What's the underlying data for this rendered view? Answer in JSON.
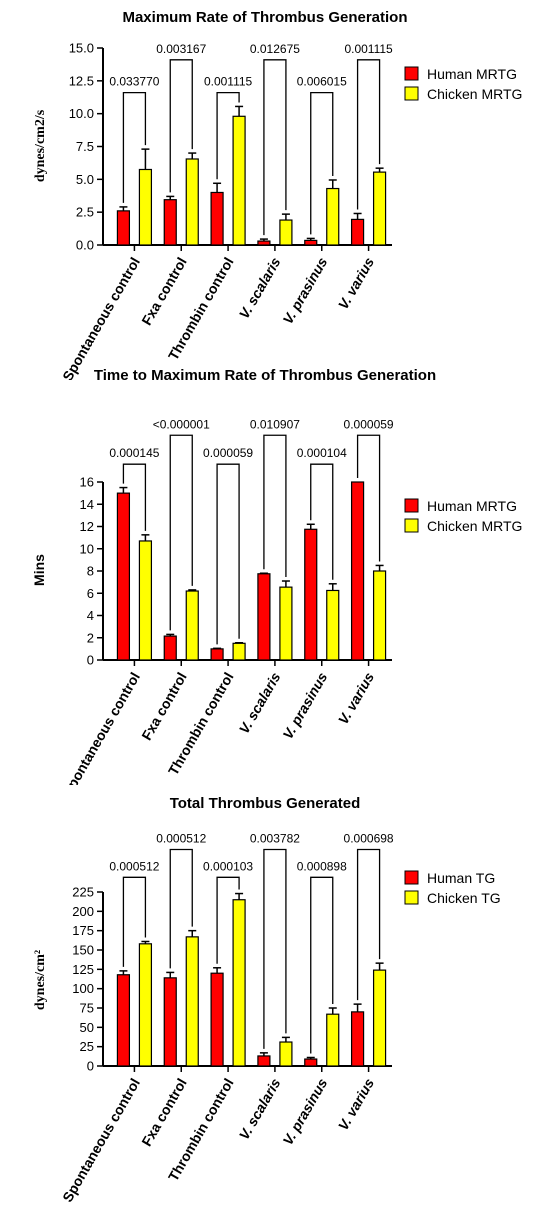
{
  "chart_data": [
    {
      "type": "bar",
      "title": "Maximum Rate of Thrombus Generation",
      "ylabel": "dynes/cm2/s",
      "ylabel_font": "serif",
      "ylim": [
        0,
        15
      ],
      "yticks": [
        "0.0",
        "2.5",
        "5.0",
        "7.5",
        "10.0",
        "12.5",
        "15.0"
      ],
      "ytick_values": [
        0,
        2.5,
        5,
        7.5,
        10,
        12.5,
        15
      ],
      "categories": [
        "Spontaneous control",
        "Fxa control",
        "Thrombin control",
        "V. scalaris",
        "V. prasinus",
        "V. varius"
      ],
      "italic_categories": [
        false,
        false,
        false,
        true,
        true,
        true
      ],
      "series": [
        {
          "name": "Human MRTG",
          "color": "#ff0000",
          "values": [
            2.6,
            3.45,
            4.0,
            0.3,
            0.35,
            1.95
          ],
          "errors": [
            0.3,
            0.25,
            0.7,
            0.15,
            0.15,
            0.45
          ]
        },
        {
          "name": "Chicken MRTG",
          "color": "#ffff00",
          "values": [
            5.75,
            6.55,
            9.8,
            1.9,
            4.3,
            5.55
          ],
          "errors": [
            1.55,
            0.45,
            0.75,
            0.45,
            0.65,
            0.3
          ]
        }
      ],
      "pvalues": [
        "0.033770",
        "0.003167",
        "0.001115",
        "0.012675",
        "0.006015",
        "0.001115"
      ],
      "bracket_tops": [
        11.6,
        14.1,
        11.6,
        14.1,
        11.6,
        14.1
      ],
      "legend_position": "right"
    },
    {
      "type": "bar",
      "title": "Time to Maximum Rate of Thrombus Generation",
      "ylabel": "Mins",
      "ylabel_font": "sans",
      "ylim": [
        0,
        16
      ],
      "yticks": [
        "0",
        "2",
        "4",
        "6",
        "8",
        "10",
        "12",
        "14",
        "16"
      ],
      "ytick_values": [
        0,
        2,
        4,
        6,
        8,
        10,
        12,
        14,
        16
      ],
      "categories": [
        "Spontaneous control",
        "Fxa control",
        "Thrombin control",
        "V. scalaris",
        "V. prasinus",
        "V. varius"
      ],
      "italic_categories": [
        false,
        false,
        false,
        true,
        true,
        true
      ],
      "series": [
        {
          "name": "Human MRTG",
          "color": "#ff0000",
          "values": [
            15.0,
            2.15,
            1.0,
            7.75,
            11.75,
            16.0
          ],
          "errors": [
            0.5,
            0.15,
            0.05,
            0.05,
            0.45,
            0.0
          ]
        },
        {
          "name": "Chicken MRTG",
          "color": "#ffff00",
          "values": [
            10.7,
            6.2,
            1.5,
            6.55,
            6.25,
            8.0
          ],
          "errors": [
            0.55,
            0.1,
            0.05,
            0.55,
            0.6,
            0.5
          ]
        }
      ],
      "pvalues": [
        "0.000145",
        "<0.000001",
        "0.000059",
        "0.010907",
        "0.000104",
        "0.000059"
      ],
      "bracket_tops": [
        17.6,
        20.2,
        17.6,
        20.2,
        17.6,
        20.2
      ],
      "legend_position": "right"
    },
    {
      "type": "bar",
      "title": "Total Thrombus Generated",
      "ylabel": "dynes/cm²",
      "ylabel_font": "serif",
      "ylim": [
        0,
        225
      ],
      "yticks": [
        "0",
        "25",
        "50",
        "75",
        "100",
        "125",
        "150",
        "175",
        "200",
        "225"
      ],
      "ytick_values": [
        0,
        25,
        50,
        75,
        100,
        125,
        150,
        175,
        200,
        225
      ],
      "categories": [
        "Spontaneous control",
        "Fxa control",
        "Thrombin control",
        "V. scalaris",
        "V. prasinus",
        "V. varius"
      ],
      "italic_categories": [
        false,
        false,
        false,
        true,
        true,
        true
      ],
      "series": [
        {
          "name": "Human TG",
          "color": "#ff0000",
          "values": [
            118,
            114,
            120,
            13,
            9,
            70
          ],
          "errors": [
            5,
            7,
            7,
            4,
            2,
            10
          ]
        },
        {
          "name": "Chicken TG",
          "color": "#ffff00",
          "values": [
            158,
            167,
            215,
            31,
            67,
            124
          ],
          "errors": [
            3,
            8,
            8,
            6,
            8,
            9
          ]
        }
      ],
      "pvalues": [
        "0.000512",
        "0.000512",
        "0.000103",
        "0.003782",
        "0.000898",
        "0.000698"
      ],
      "bracket_tops": [
        244,
        280,
        244,
        280,
        244,
        280
      ],
      "legend_position": "right"
    }
  ]
}
